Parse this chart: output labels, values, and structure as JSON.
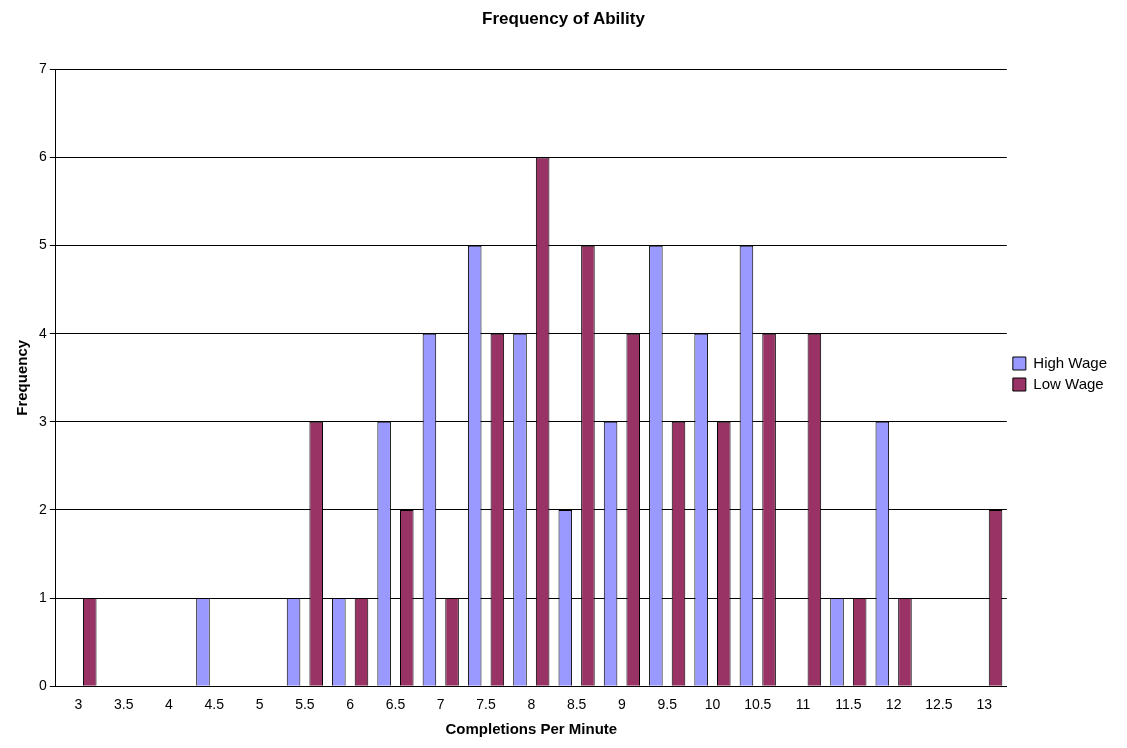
{
  "chart_data": {
    "type": "bar",
    "title": "Frequency of Ability",
    "xlabel": "Completions Per Minute",
    "ylabel": "Frequency",
    "categories": [
      "3",
      "3.5",
      "4",
      "4.5",
      "5",
      "5.5",
      "6",
      "6.5",
      "7",
      "7.5",
      "8",
      "8.5",
      "9",
      "9.5",
      "10",
      "10.5",
      "11",
      "11.5",
      "12",
      "12.5",
      "13"
    ],
    "series": [
      {
        "name": "High Wage",
        "color": "#9999ff",
        "values": [
          0,
          0,
          0,
          1,
          0,
          1,
          1,
          3,
          4,
          5,
          4,
          2,
          3,
          5,
          4,
          5,
          0,
          1,
          3,
          0,
          0
        ]
      },
      {
        "name": "Low Wage",
        "color": "#993366",
        "values": [
          1,
          0,
          0,
          0,
          0,
          3,
          1,
          2,
          1,
          4,
          6,
          5,
          4,
          3,
          3,
          4,
          4,
          1,
          1,
          0,
          2
        ]
      }
    ],
    "ylim": [
      0,
      7
    ],
    "yticks": [
      0,
      1,
      2,
      3,
      4,
      5,
      6,
      7
    ],
    "grid": "y",
    "legend": "right"
  }
}
